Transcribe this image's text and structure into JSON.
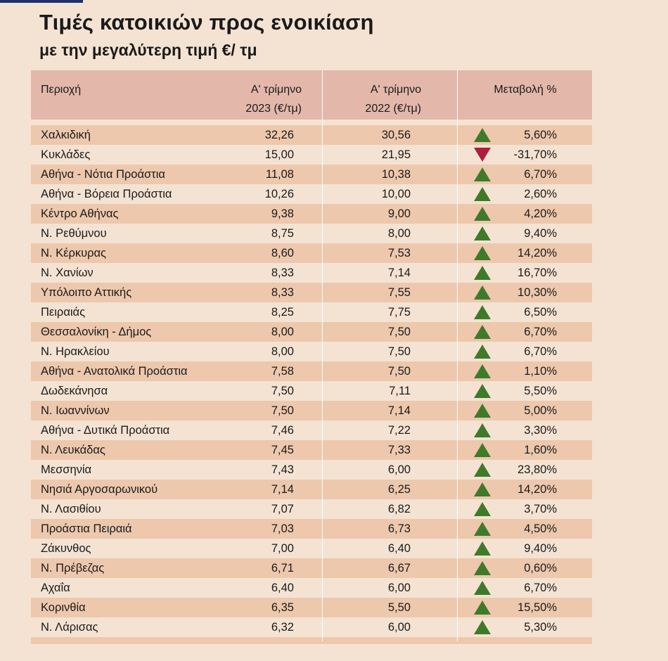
{
  "title": "Τιμές κατοικιών προς ενοικίαση",
  "subtitle": "με την μεγαλύτερη τιμή €/ τμ",
  "colors": {
    "up": "#3f7a2a",
    "down": "#b01c3c",
    "header": "#e3b7a9",
    "stripe": "#edc8ad"
  },
  "chart_data": {
    "type": "table",
    "columns": [
      "Περιοχή",
      "Α' τρίμηνο 2023 (€/τμ)",
      "Α' τρίμηνο 2022 (€/τμ)",
      "Μεταβολή %"
    ],
    "header": {
      "region": "Περιοχή",
      "q2023_line1": "Α' τρίμηνο",
      "q2023_line2": "2023 (€/τμ)",
      "q2022_line1": "Α' τρίμηνο",
      "q2022_line2": "2022 (€/τμ)",
      "change": "Μεταβολή %"
    },
    "rows": [
      {
        "region": "Χαλκιδική",
        "q2023": "32,26",
        "q2022": "30,56",
        "change": "5,60%",
        "trend": "up"
      },
      {
        "region": "Κυκλάδες",
        "q2023": "15,00",
        "q2022": "21,95",
        "change": "-31,70%",
        "trend": "down"
      },
      {
        "region": "Αθήνα - Νότια Προάστια",
        "q2023": "11,08",
        "q2022": "10,38",
        "change": "6,70%",
        "trend": "up"
      },
      {
        "region": "Αθήνα - Βόρεια Προάστια",
        "q2023": "10,26",
        "q2022": "10,00",
        "change": "2,60%",
        "trend": "up"
      },
      {
        "region": "Κέντρο Αθήνας",
        "q2023": "9,38",
        "q2022": "9,00",
        "change": "4,20%",
        "trend": "up"
      },
      {
        "region": "Ν. Ρεθύμνου",
        "q2023": "8,75",
        "q2022": "8,00",
        "change": "9,40%",
        "trend": "up"
      },
      {
        "region": "Ν. Κέρκυρας",
        "q2023": "8,60",
        "q2022": "7,53",
        "change": "14,20%",
        "trend": "up"
      },
      {
        "region": "Ν. Χανίων",
        "q2023": "8,33",
        "q2022": "7,14",
        "change": "16,70%",
        "trend": "up"
      },
      {
        "region": "Υπόλοιπο Αττικής",
        "q2023": "8,33",
        "q2022": "7,55",
        "change": "10,30%",
        "trend": "up"
      },
      {
        "region": "Πειραιάς",
        "q2023": "8,25",
        "q2022": "7,75",
        "change": "6,50%",
        "trend": "up"
      },
      {
        "region": "Θεσσαλονίκη - Δήμος",
        "q2023": "8,00",
        "q2022": "7,50",
        "change": "6,70%",
        "trend": "up"
      },
      {
        "region": "Ν. Ηρακλείου",
        "q2023": "8,00",
        "q2022": "7,50",
        "change": "6,70%",
        "trend": "up"
      },
      {
        "region": "Αθήνα - Ανατολικά Προάστια",
        "q2023": "7,58",
        "q2022": "7,50",
        "change": "1,10%",
        "trend": "up"
      },
      {
        "region": "Δωδεκάνησα",
        "q2023": "7,50",
        "q2022": "7,11",
        "change": "5,50%",
        "trend": "up"
      },
      {
        "region": "Ν. Ιωαννίνων",
        "q2023": "7,50",
        "q2022": "7,14",
        "change": "5,00%",
        "trend": "up"
      },
      {
        "region": "Αθήνα - Δυτικά Προάστια",
        "q2023": "7,46",
        "q2022": "7,22",
        "change": "3,30%",
        "trend": "up"
      },
      {
        "region": "Ν. Λευκάδας",
        "q2023": "7,45",
        "q2022": "7,33",
        "change": "1,60%",
        "trend": "up"
      },
      {
        "region": "Μεσσηνία",
        "q2023": "7,43",
        "q2022": "6,00",
        "change": "23,80%",
        "trend": "up"
      },
      {
        "region": "Νησιά Αργοσαρωνικού",
        "q2023": "7,14",
        "q2022": "6,25",
        "change": "14,20%",
        "trend": "up"
      },
      {
        "region": "Ν. Λασιθίου",
        "q2023": "7,07",
        "q2022": "6,82",
        "change": "3,70%",
        "trend": "up"
      },
      {
        "region": "Προάστια Πειραιά",
        "q2023": "7,03",
        "q2022": "6,73",
        "change": "4,50%",
        "trend": "up"
      },
      {
        "region": "Ζάκυνθος",
        "q2023": "7,00",
        "q2022": "6,40",
        "change": "9,40%",
        "trend": "up"
      },
      {
        "region": "Ν. Πρέβεζας",
        "q2023": "6,71",
        "q2022": "6,67",
        "change": "0,60%",
        "trend": "up"
      },
      {
        "region": "Αχαΐα",
        "q2023": "6,40",
        "q2022": "6,00",
        "change": "6,70%",
        "trend": "up"
      },
      {
        "region": "Κορινθία",
        "q2023": "6,35",
        "q2022": "5,50",
        "change": "15,50%",
        "trend": "up"
      },
      {
        "region": "Ν. Λάρισας",
        "q2023": "6,32",
        "q2022": "6,00",
        "change": "5,30%",
        "trend": "up"
      }
    ]
  }
}
